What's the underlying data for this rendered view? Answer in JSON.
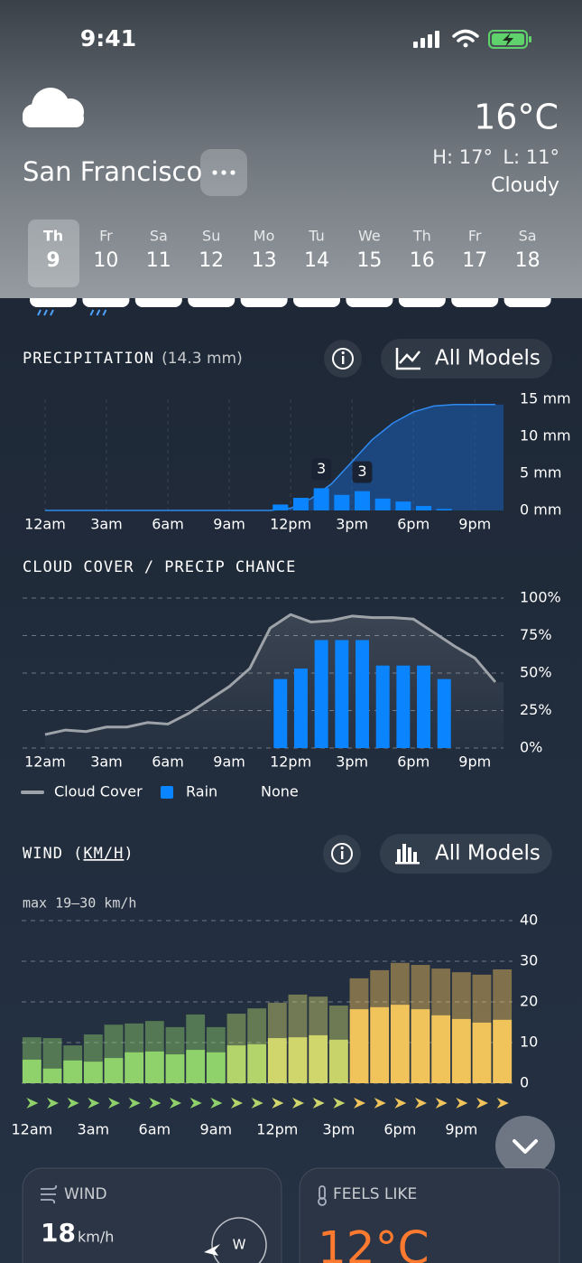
{
  "status_bar": {
    "time": "9:41"
  },
  "header": {
    "city": "San Francisco",
    "temperature": "16°C",
    "high": "H: 17°",
    "low": "L: 11°",
    "condition": "Cloudy"
  },
  "days": [
    {
      "day": "Th",
      "date": 9
    },
    {
      "day": "Fr",
      "date": 10
    },
    {
      "day": "Sa",
      "date": 11
    },
    {
      "day": "Su",
      "date": 12
    },
    {
      "day": "Mo",
      "date": 13
    },
    {
      "day": "Tu",
      "date": 14
    },
    {
      "day": "We",
      "date": 15
    },
    {
      "day": "Th",
      "date": 16
    },
    {
      "day": "Fr",
      "date": 17
    },
    {
      "day": "Sa",
      "date": 18
    }
  ],
  "chart_data": [
    {
      "type": "bar",
      "title": "PRECIPITATION",
      "subtitle": "(14.3 mm)",
      "button": "All Models",
      "grid": "x",
      "xlim": [
        -1.1,
        22.4
      ],
      "xticks": [
        {
          "value": 0,
          "label": "12am"
        },
        {
          "value": 3,
          "label": "3am"
        },
        {
          "value": 6,
          "label": "6am"
        },
        {
          "value": 9,
          "label": "9am"
        },
        {
          "value": 12,
          "label": "12pm"
        },
        {
          "value": 15,
          "label": "3pm"
        },
        {
          "value": 18,
          "label": "6pm"
        },
        {
          "value": 21,
          "label": "9pm"
        }
      ],
      "ylim": [
        0,
        15
      ],
      "yticks": [
        {
          "value": 0,
          "label": "0 mm"
        },
        {
          "value": 5,
          "label": "5 mm"
        },
        {
          "value": 10,
          "label": "10 mm"
        },
        {
          "value": 15,
          "label": "15 mm"
        }
      ],
      "series": [
        {
          "type": "area",
          "color": "#1a5fb8",
          "x": [
            0,
            1,
            2,
            3,
            4,
            5,
            6,
            7,
            8,
            9,
            10,
            11,
            12,
            13,
            14,
            15,
            16,
            17,
            18,
            19,
            20,
            21,
            22
          ],
          "values": [
            0,
            0,
            0,
            0,
            0,
            0,
            0,
            0,
            0,
            0,
            0,
            0,
            0.3,
            1.6,
            3.6,
            6.6,
            9.6,
            11.8,
            13.3,
            14.1,
            14.3,
            14.3,
            14.3
          ]
        },
        {
          "type": "bar",
          "color": "#0a84ff",
          "x": [
            11.5,
            12.5,
            13.5,
            14.5,
            15.5,
            16.5,
            17.5,
            18.5,
            19.5
          ],
          "values": [
            0.8,
            1.7,
            3.0,
            2.1,
            2.6,
            1.6,
            1.2,
            0.6,
            0.2
          ],
          "value_labels": [
            null,
            null,
            "3",
            null,
            "3",
            null,
            null,
            null,
            null
          ]
        }
      ]
    },
    {
      "type": "bar",
      "title": "CLOUD COVER / PRECIP CHANCE",
      "grid": "y",
      "legend_note": "None",
      "xlim": [
        -1.1,
        22.4
      ],
      "xticks": [
        {
          "value": 0,
          "label": "12am"
        },
        {
          "value": 3,
          "label": "3am"
        },
        {
          "value": 6,
          "label": "6am"
        },
        {
          "value": 9,
          "label": "9am"
        },
        {
          "value": 12,
          "label": "12pm"
        },
        {
          "value": 15,
          "label": "3pm"
        },
        {
          "value": 18,
          "label": "6pm"
        },
        {
          "value": 21,
          "label": "9pm"
        }
      ],
      "ylim": [
        0,
        100
      ],
      "yticks": [
        {
          "value": 0,
          "label": "0%"
        },
        {
          "value": 25,
          "label": "25%"
        },
        {
          "value": 50,
          "label": "50%"
        },
        {
          "value": 75,
          "label": "75%"
        },
        {
          "value": 100,
          "label": "100%"
        }
      ],
      "series": [
        {
          "name": "Cloud Cover",
          "type": "line",
          "color": "#9ea2a9",
          "x": [
            0,
            1,
            2,
            3,
            4,
            5,
            6,
            7,
            8,
            9,
            10,
            11,
            12,
            13,
            14,
            15,
            16,
            17,
            18,
            19,
            20,
            21,
            22
          ],
          "values": [
            9,
            12,
            11,
            14,
            14,
            17,
            16,
            23,
            32,
            41,
            53,
            80,
            89,
            84,
            85,
            88,
            87,
            87,
            86,
            77,
            68,
            60,
            44
          ]
        },
        {
          "name": "Rain",
          "type": "bar",
          "color": "#0a84ff",
          "x": [
            11.5,
            12.5,
            13.5,
            14.5,
            15.5,
            16.5,
            17.5,
            18.5,
            19.5
          ],
          "values": [
            46,
            53,
            72,
            72,
            72,
            55,
            55,
            55,
            46
          ]
        }
      ]
    },
    {
      "type": "bar",
      "title": [
        "WIND (",
        "KM/H",
        ")"
      ],
      "subtitle": "max 19–30 km/h",
      "button": "All Models",
      "grid": "y",
      "xlim": [
        -0.5,
        23.5
      ],
      "xticks": [
        {
          "value": 0,
          "label": "12am"
        },
        {
          "value": 3,
          "label": "3am"
        },
        {
          "value": 6,
          "label": "6am"
        },
        {
          "value": 9,
          "label": "9am"
        },
        {
          "value": 12,
          "label": "12pm"
        },
        {
          "value": 15,
          "label": "3pm"
        },
        {
          "value": 18,
          "label": "6pm"
        },
        {
          "value": 21,
          "label": "9pm"
        }
      ],
      "ylim": [
        0,
        40
      ],
      "yticks": [
        0,
        10,
        20,
        30,
        40
      ],
      "colors": [
        "#8fd16a",
        "#8fd16a",
        "#8fd16a",
        "#8fd16a",
        "#8fd16a",
        "#8fd16a",
        "#8fd16a",
        "#8fd16a",
        "#8fd16a",
        "#8fd16a",
        "#b3d46a",
        "#b3d46a",
        "#d0d56c",
        "#d0d56c",
        "#d0d56c",
        "#c8d46a",
        "#f1c45b",
        "#f1c45b",
        "#f1c45b",
        "#f1c45b",
        "#f1c45b",
        "#f1c45b",
        "#f1c45b",
        "#f1c45b"
      ],
      "series": [
        {
          "type": "bar",
          "values": [
            11.3,
            11.1,
            9.3,
            12,
            14.4,
            14.7,
            15.3,
            13.8,
            16.9,
            13.8,
            17.1,
            18.4,
            19.8,
            21.8,
            21.3,
            19.1,
            25.8,
            27.8,
            29.6,
            29.1,
            28.2,
            27.3,
            26.7,
            28
          ]
        },
        {
          "type": "bar",
          "values": [
            5.8,
            3.6,
            5.6,
            5.3,
            6.2,
            7.6,
            7.8,
            7.1,
            8.2,
            7.6,
            9.3,
            9.6,
            11.1,
            11.3,
            11.8,
            10.7,
            18.2,
            18.7,
            19.3,
            18.2,
            16.7,
            15.8,
            14.9,
            15.6
          ]
        }
      ]
    }
  ],
  "cards": [
    {
      "title": "WIND",
      "value": 18,
      "unit": "km/h",
      "direction": "W"
    },
    {
      "title": "FEELS LIKE",
      "value": "12°C"
    }
  ]
}
